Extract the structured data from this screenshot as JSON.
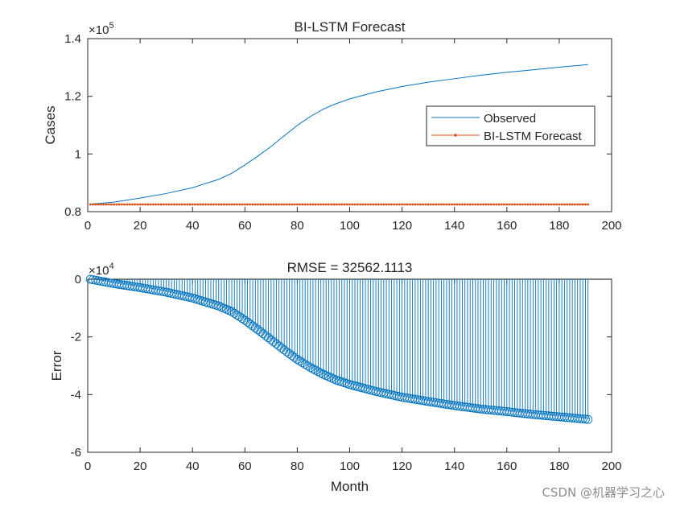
{
  "watermark": "CSDN @机器学习之心",
  "colors": {
    "observed": "#0072BD",
    "forecast": "#D95319",
    "axis": "#262626",
    "zeroline": "#000000"
  },
  "chart_data": [
    {
      "type": "line",
      "title": "BI-LSTM Forecast",
      "xlabel": "",
      "ylabel": "Cases",
      "xlim": [
        0,
        200
      ],
      "ylim": [
        80000,
        140000
      ],
      "xticks": [
        0,
        20,
        40,
        60,
        80,
        100,
        120,
        140,
        160,
        180,
        200
      ],
      "xtick_labels": [
        "0",
        "20",
        "40",
        "60",
        "80",
        "100",
        "120",
        "140",
        "160",
        "180",
        "200"
      ],
      "yticks": [
        80000,
        100000,
        120000,
        140000
      ],
      "ytick_labels": [
        "0.8",
        "1",
        "1.2",
        "1.4"
      ],
      "y_exponent": "×10",
      "y_exponent_power": "5",
      "legend_position": "right",
      "series": [
        {
          "name": "Observed",
          "style": "line",
          "x": [
            1,
            10,
            20,
            30,
            40,
            50,
            55,
            60,
            65,
            70,
            75,
            80,
            85,
            90,
            95,
            100,
            110,
            120,
            130,
            140,
            150,
            160,
            170,
            180,
            191
          ],
          "y": [
            82600,
            83300,
            84700,
            86300,
            88300,
            91200,
            93300,
            96200,
            99300,
            102600,
            106300,
            109900,
            113000,
            115600,
            117500,
            119100,
            121500,
            123400,
            124900,
            126100,
            127300,
            128300,
            129200,
            130100,
            131000
          ]
        },
        {
          "name": "BI-LSTM Forecast",
          "style": "line-markers",
          "x_start": 1,
          "x_end": 191,
          "value": 82500
        }
      ]
    },
    {
      "type": "stem",
      "title": "RMSE = 32562.1113",
      "xlabel": "Month",
      "ylabel": "Error",
      "xlim": [
        0,
        200
      ],
      "ylim": [
        -60000,
        0
      ],
      "xticks": [
        0,
        20,
        40,
        60,
        80,
        100,
        120,
        140,
        160,
        180,
        200
      ],
      "xtick_labels": [
        "0",
        "20",
        "40",
        "60",
        "80",
        "100",
        "120",
        "140",
        "160",
        "180",
        "200"
      ],
      "yticks": [
        0,
        -20000,
        -40000,
        -60000
      ],
      "ytick_labels": [
        "0",
        "-2",
        "-4",
        "-6"
      ],
      "y_exponent": "×10",
      "y_exponent_power": "4",
      "series": [
        {
          "name": "Error",
          "x": [
            1,
            10,
            20,
            30,
            40,
            50,
            55,
            60,
            65,
            70,
            75,
            80,
            85,
            90,
            95,
            100,
            110,
            120,
            130,
            140,
            150,
            160,
            170,
            180,
            191
          ],
          "y": [
            0,
            -1500,
            -2900,
            -4500,
            -6500,
            -9300,
            -11200,
            -14200,
            -17500,
            -21000,
            -24500,
            -27800,
            -30600,
            -33000,
            -35000,
            -36500,
            -38900,
            -40900,
            -42400,
            -43800,
            -45000,
            -45900,
            -46900,
            -47700,
            -48600
          ]
        }
      ]
    }
  ]
}
